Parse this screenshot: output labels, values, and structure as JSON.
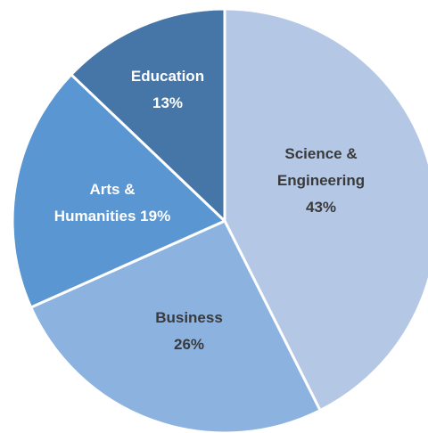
{
  "chart_data": {
    "type": "pie",
    "categories": [
      "Science & Engineering",
      "Business",
      "Arts & Humanities",
      "Education"
    ],
    "values": [
      43,
      26,
      19,
      13
    ],
    "value_labels": [
      "43%",
      "26%",
      "19%",
      "13%"
    ],
    "colors": [
      "#b4c8e6",
      "#8cb3e0",
      "#5a96d2",
      "#4675a8"
    ],
    "label_colors": [
      "#3a3a3a",
      "#3a3a3a",
      "#ffffff",
      "#ffffff"
    ]
  }
}
